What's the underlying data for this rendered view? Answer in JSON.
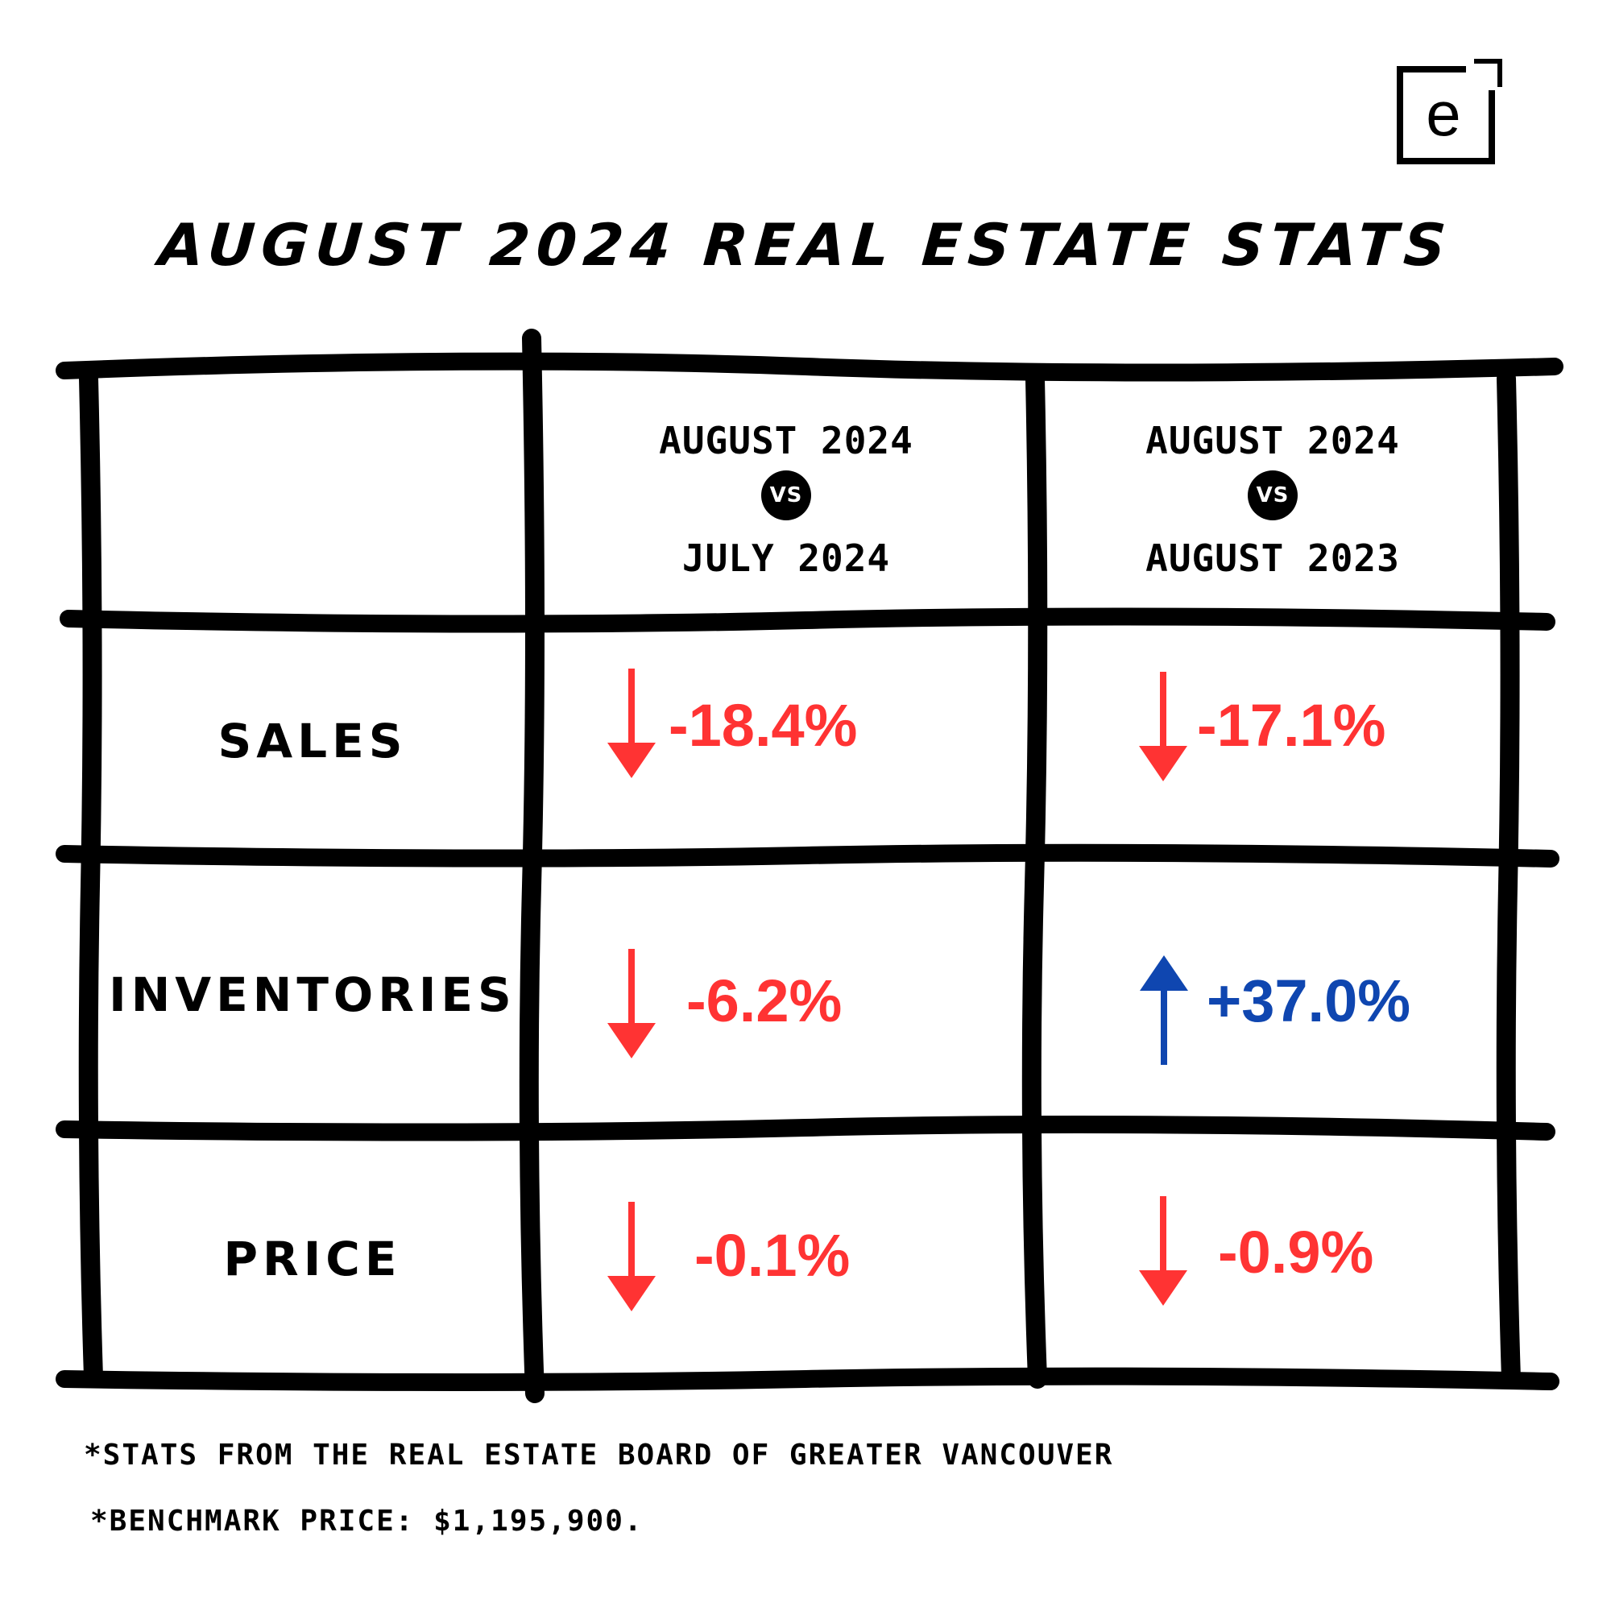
{
  "logo": {
    "letter": "e",
    "icon": "brand-e-bracket-icon"
  },
  "title": "AUGUST 2024 REAL ESTATE STATS",
  "columns": [
    {
      "line1": "AUGUST 2024",
      "vs": "VS",
      "line2": "JULY 2024"
    },
    {
      "line1": "AUGUST 2024",
      "vs": "VS",
      "line2": "AUGUST 2023"
    }
  ],
  "rows": [
    {
      "label": "SALES",
      "cells": [
        {
          "value": "-18.4%",
          "direction": "down",
          "color": "#ff3333"
        },
        {
          "value": "-17.1%",
          "direction": "down",
          "color": "#ff3333"
        }
      ]
    },
    {
      "label": "INVENTORIES",
      "cells": [
        {
          "value": "-6.2%",
          "direction": "down",
          "color": "#ff3333"
        },
        {
          "value": "+37.0%",
          "direction": "up",
          "color": "#0f46b0"
        }
      ]
    },
    {
      "label": "PRICE",
      "cells": [
        {
          "value": "-0.1%",
          "direction": "down",
          "color": "#ff3333"
        },
        {
          "value": "-0.9%",
          "direction": "down",
          "color": "#ff3333"
        }
      ]
    }
  ],
  "footnotes": [
    "*STATS FROM THE REAL ESTATE BOARD OF GREATER VANCOUVER",
    "*BENCHMARK PRICE: $1,195,900."
  ],
  "colors": {
    "down": "#ff3333",
    "up": "#0f46b0",
    "ink": "#000000",
    "background": "#ffffff"
  }
}
